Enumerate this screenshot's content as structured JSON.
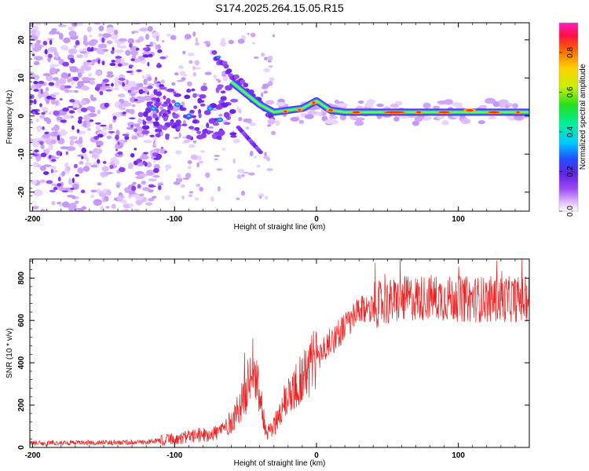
{
  "title": "S174.2025.264.15.05.R15",
  "chart_data": [
    {
      "type": "heatmap",
      "name": "spectrogram",
      "xlabel": "Height of straight line (km)",
      "ylabel": "Frequency (Hz)",
      "xlim": [
        -202,
        150
      ],
      "ylim": [
        -25,
        24.5
      ],
      "xticks": [
        -200,
        -100,
        0,
        100
      ],
      "yticks": [
        -20,
        -10,
        0,
        10,
        20
      ],
      "colorbar": {
        "label": "Normalized spectral amplitude",
        "range": [
          0.0,
          0.95
        ],
        "ticks": [
          0.0,
          0.2,
          0.4,
          0.6,
          0.8
        ],
        "tick_labels": [
          "0.0",
          "0.2",
          "0.4",
          "0.6",
          "0.8"
        ]
      },
      "line_trace": [
        {
          "x": -60,
          "y": 9
        },
        {
          "x": -50,
          "y": 6
        },
        {
          "x": -40,
          "y": 3
        },
        {
          "x": -30,
          "y": 1
        },
        {
          "x": -20,
          "y": 1.5
        },
        {
          "x": -10,
          "y": 2
        },
        {
          "x": 0,
          "y": 4
        },
        {
          "x": 10,
          "y": 1.5
        },
        {
          "x": 20,
          "y": 1
        },
        {
          "x": 150,
          "y": 1
        }
      ]
    },
    {
      "type": "line",
      "name": "snr",
      "xlabel": "Height of straight line (km)",
      "ylabel": "SNR (10 * v/v)",
      "xlim": [
        -202,
        150
      ],
      "ylim": [
        0,
        890
      ],
      "xticks": [
        -200,
        -100,
        0,
        100
      ],
      "yticks": [
        0,
        200,
        400,
        600,
        800
      ],
      "series": [
        {
          "name": "SNR",
          "color": "#ee2020",
          "envelope": [
            {
              "x": -202,
              "y": 20
            },
            {
              "x": -120,
              "y": 25
            },
            {
              "x": -100,
              "y": 40
            },
            {
              "x": -80,
              "y": 60
            },
            {
              "x": -70,
              "y": 70
            },
            {
              "x": -60,
              "y": 120
            },
            {
              "x": -50,
              "y": 250
            },
            {
              "x": -45,
              "y": 400
            },
            {
              "x": -40,
              "y": 250
            },
            {
              "x": -35,
              "y": 60
            },
            {
              "x": -30,
              "y": 100
            },
            {
              "x": -20,
              "y": 250
            },
            {
              "x": -10,
              "y": 330
            },
            {
              "x": 0,
              "y": 420
            },
            {
              "x": 10,
              "y": 500
            },
            {
              "x": 20,
              "y": 570
            },
            {
              "x": 30,
              "y": 640
            },
            {
              "x": 40,
              "y": 670
            },
            {
              "x": 60,
              "y": 700
            },
            {
              "x": 80,
              "y": 710
            },
            {
              "x": 100,
              "y": 700
            },
            {
              "x": 150,
              "y": 700
            }
          ]
        }
      ]
    }
  ]
}
